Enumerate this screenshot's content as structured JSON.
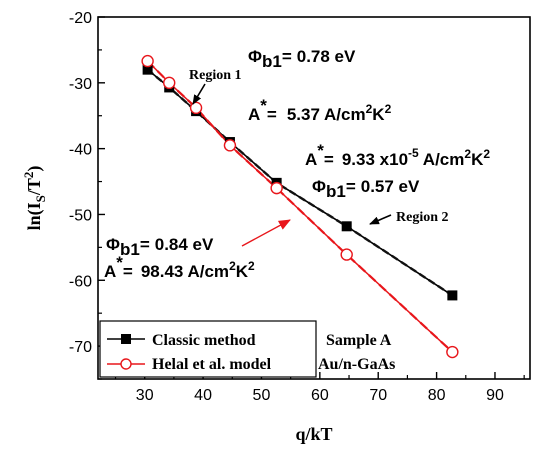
{
  "chart_data": {
    "type": "scatter",
    "xlabel": "q/kT",
    "ylabel": "ln(I_s/T^2)",
    "ylabel_parts": {
      "pre": "ln(I",
      "sub": "S",
      "mid": "/T",
      "sup": "2",
      "post": ")"
    },
    "xlim": [
      22,
      96
    ],
    "ylim": [
      -75,
      -20
    ],
    "xticks": [
      30,
      40,
      50,
      60,
      70,
      80,
      90
    ],
    "yticks": [
      -70,
      -60,
      -50,
      -40,
      -30,
      -20
    ],
    "series": [
      {
        "name": "Classic method",
        "marker": "square",
        "color": "#000000",
        "x": [
          30.5,
          34.2,
          38.8,
          44.6,
          52.6,
          64.6,
          82.7
        ],
        "y": [
          -28.0,
          -30.7,
          -34.3,
          -39.0,
          -45.2,
          -51.8,
          -62.3
        ]
      },
      {
        "name": "Helal et al. model",
        "marker": "circle",
        "color": "#e8161b",
        "x": [
          30.5,
          34.2,
          38.8,
          44.6,
          52.6,
          64.6,
          82.7
        ],
        "y": [
          -26.7,
          -30.0,
          -33.8,
          -39.5,
          -46.0,
          -56.1,
          -70.9
        ]
      }
    ],
    "annotations": {
      "region1": "Region 1",
      "region2": "Region 2",
      "phi": "Φ",
      "b1": "b1",
      "astar": "A",
      "star": "*",
      "eq": "=",
      "block1": {
        "phi_value": "0.78 eV",
        "a_value": "5.37 A/cm",
        "sq": "2",
        "k": "K",
        "k2": "2"
      },
      "block2": {
        "a_value": "9.33 x10",
        "exp": "-5",
        "a_unit": " A/cm",
        "sq": "2",
        "k": "K",
        "k2": "2",
        "phi_value": "0.57 eV"
      },
      "block3": {
        "phi_value": "0.84 eV",
        "a_value": "98.43 A/cm",
        "sq": "2",
        "k": "K",
        "k2": "2"
      }
    },
    "sample": {
      "line1": "Sample A",
      "line2": "Au/n-GaAs"
    }
  }
}
